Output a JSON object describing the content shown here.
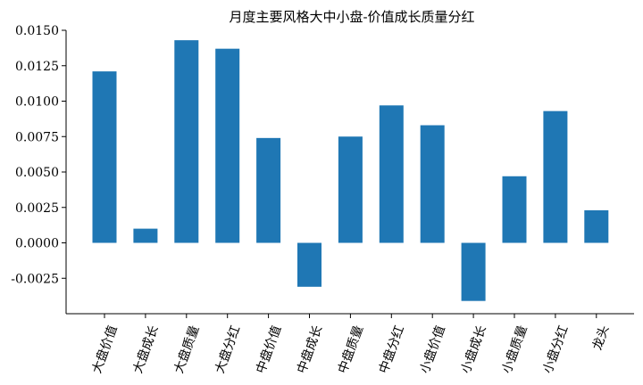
{
  "chart_data": {
    "type": "bar",
    "title": "月度主要风格大中小盘-价值成长质量分红",
    "xlabel": "",
    "ylabel": "",
    "categories": [
      "大盘价值",
      "大盘成长",
      "大盘质量",
      "大盘分红",
      "中盘价值",
      "中盘成长",
      "中盘质量",
      "中盘分红",
      "小盘价值",
      "小盘成长",
      "小盘质量",
      "小盘分红",
      "龙头"
    ],
    "values": [
      0.0121,
      0.001,
      0.0143,
      0.0137,
      0.0074,
      -0.0031,
      0.0075,
      0.0097,
      0.0083,
      -0.0041,
      0.0047,
      0.0093,
      0.0023
    ],
    "yticks": [
      -0.0025,
      0.0,
      0.0025,
      0.005,
      0.0075,
      0.01,
      0.0125,
      0.015
    ],
    "ytick_labels": [
      "-0.0025",
      "0.0000",
      "0.0025",
      "0.0050",
      "0.0075",
      "0.0100",
      "0.0125",
      "0.0150"
    ],
    "ylim": [
      -0.005,
      0.015
    ],
    "bar_color": "#1f77b4",
    "grid": false,
    "legend": "none"
  }
}
